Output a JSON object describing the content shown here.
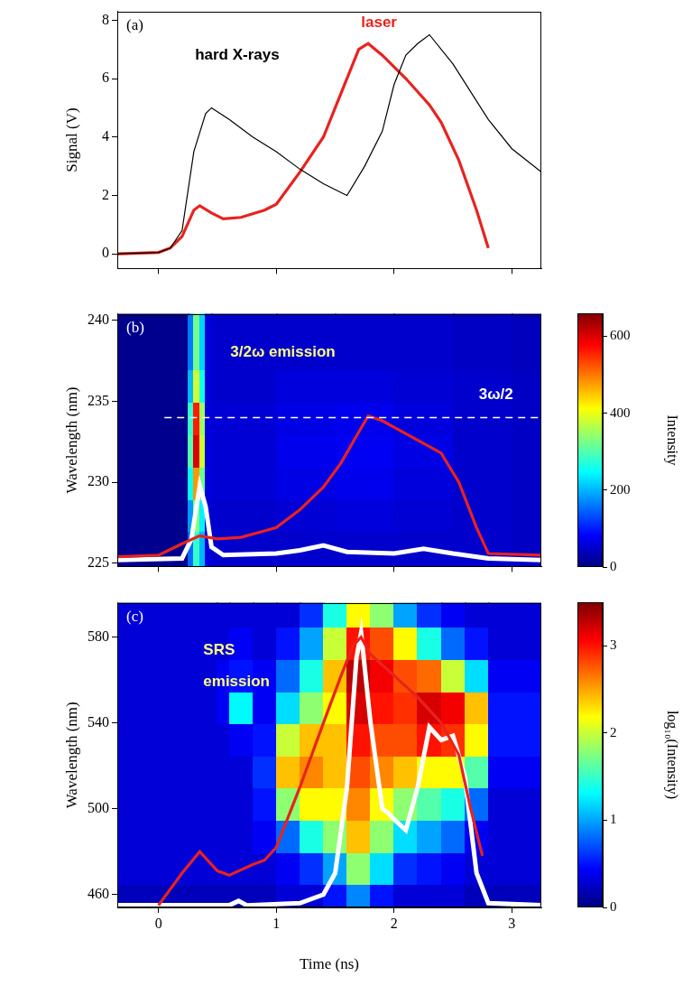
{
  "chart_data": [
    {
      "type": "line",
      "panel_label": "(a)",
      "y_label": "Signal (V)",
      "xlim": [
        -0.35,
        3.25
      ],
      "xticks": [
        0,
        1,
        2,
        3
      ],
      "ylim": [
        -0.5,
        8.3
      ],
      "yticks": [
        0,
        2,
        4,
        6,
        8
      ],
      "grid": false,
      "tick_labels": "y",
      "series": [
        {
          "color": "#000000",
          "line_style": "solid",
          "marker": "none",
          "x": [
            -0.35,
            0,
            0.1,
            0.2,
            0.3,
            0.4,
            0.45,
            0.6,
            0.8,
            1.0,
            1.2,
            1.4,
            1.6,
            1.75,
            1.9,
            2.0,
            2.1,
            2.2,
            2.3,
            2.5,
            2.8,
            3.0,
            3.25
          ],
          "values": [
            0,
            0.05,
            0.2,
            0.8,
            3.5,
            4.8,
            5.0,
            4.6,
            4.0,
            3.5,
            2.9,
            2.4,
            2.0,
            3.0,
            4.2,
            5.8,
            6.8,
            7.2,
            7.5,
            6.5,
            4.6,
            3.6,
            2.8
          ]
        },
        {
          "color": "#e8231e",
          "line_style": "thick",
          "marker": "none",
          "x": [
            -0.35,
            0,
            0.1,
            0.2,
            0.3,
            0.35,
            0.45,
            0.55,
            0.7,
            0.9,
            1.0,
            1.2,
            1.4,
            1.55,
            1.7,
            1.78,
            1.9,
            2.1,
            2.3,
            2.4,
            2.55,
            2.7,
            2.8
          ],
          "values": [
            0,
            0.05,
            0.2,
            0.6,
            1.5,
            1.65,
            1.4,
            1.2,
            1.25,
            1.5,
            1.7,
            2.8,
            4.0,
            5.5,
            7.0,
            7.2,
            6.8,
            6.0,
            5.1,
            4.5,
            3.2,
            1.5,
            0.2
          ]
        }
      ],
      "annotations": [
        {
          "text": "hard X-rays",
          "x": 0.31,
          "y": 6.8,
          "color": "#000000"
        },
        {
          "text": "laser",
          "x": 1.72,
          "y": 7.9,
          "color": "#e8231e"
        }
      ]
    },
    {
      "type": "heatmap",
      "panel_label": "(b)",
      "y_label": "Wavelength (nm)",
      "xlim": [
        -0.35,
        3.25
      ],
      "xticks": [
        0,
        1,
        2,
        3
      ],
      "ylim": [
        224.8,
        240.4
      ],
      "yticks": [
        225,
        230,
        235,
        240
      ],
      "grid": false,
      "tick_labels": "y",
      "heatmap": {
        "x_edges": [
          -0.35,
          0.25,
          0.3,
          0.35,
          0.4,
          0.45,
          1.0,
          1.5,
          2.0,
          2.5,
          3.0,
          3.25
        ],
        "y_edges": [
          224.8,
          227,
          229,
          231,
          233,
          235,
          237,
          240.4
        ],
        "z": [
          [
            10,
            150,
            280,
            200,
            60,
            50,
            50,
            50,
            50,
            50,
            45
          ],
          [
            10,
            180,
            330,
            240,
            60,
            50,
            55,
            60,
            55,
            50,
            45
          ],
          [
            10,
            250,
            480,
            320,
            60,
            55,
            65,
            70,
            60,
            50,
            45
          ],
          [
            10,
            300,
            600,
            380,
            60,
            55,
            70,
            75,
            65,
            50,
            45
          ],
          [
            10,
            280,
            560,
            350,
            60,
            55,
            65,
            70,
            60,
            50,
            45
          ],
          [
            10,
            200,
            380,
            260,
            60,
            50,
            60,
            60,
            55,
            50,
            45
          ],
          [
            10,
            160,
            320,
            220,
            60,
            50,
            50,
            50,
            50,
            45,
            40
          ]
        ]
      },
      "colorbar": {
        "label": "Intensity",
        "range": [
          0,
          660
        ],
        "ticks": [
          0,
          200,
          400,
          600
        ]
      },
      "series": [
        {
          "color": "#ffffff",
          "line_style": "dashed",
          "marker": "none",
          "x": [
            0.05,
            3.25
          ],
          "values": [
            234,
            234
          ]
        },
        {
          "color": "#e8231e",
          "line_style": "thick",
          "marker": "none",
          "x": [
            -0.35,
            0,
            0.2,
            0.35,
            0.5,
            0.7,
            0.9,
            1.0,
            1.2,
            1.4,
            1.55,
            1.7,
            1.78,
            1.9,
            2.1,
            2.3,
            2.4,
            2.55,
            2.7,
            2.8,
            3.25
          ],
          "values": [
            225.4,
            225.5,
            226.2,
            226.7,
            226.5,
            226.6,
            227.0,
            227.2,
            228.3,
            229.7,
            231.2,
            233.1,
            234.1,
            233.8,
            233.0,
            232.2,
            231.8,
            230.0,
            227.2,
            225.6,
            225.5
          ]
        },
        {
          "color": "#000000",
          "line_style": "outlined",
          "marker": "none",
          "x": [
            -0.35,
            0.2,
            0.28,
            0.35,
            0.4,
            0.45,
            0.55,
            1.0,
            1.2,
            1.4,
            1.6,
            2.0,
            2.25,
            2.5,
            2.8,
            3.25
          ],
          "values": [
            225.2,
            225.3,
            226.5,
            229.8,
            228.5,
            226.0,
            225.5,
            225.6,
            225.8,
            226.1,
            225.7,
            225.6,
            225.9,
            225.6,
            225.3,
            225.2
          ]
        }
      ],
      "annotations": [
        {
          "text": "3/2ω emission",
          "x": 0.61,
          "y": 238,
          "color": "#ffff80"
        },
        {
          "text": "3ω/2",
          "x": 2.72,
          "y": 235.4,
          "color": "#ffffff"
        }
      ]
    },
    {
      "type": "heatmap",
      "panel_label": "(c)",
      "x_label": "Time (ns)",
      "y_label": "Wavelength (nm)",
      "xlim": [
        -0.35,
        3.25
      ],
      "xticks": [
        0,
        1,
        2,
        3
      ],
      "ylim": [
        454,
        596
      ],
      "yticks": [
        460,
        500,
        540,
        580
      ],
      "grid": false,
      "heatmap": {
        "x_edges": [
          -0.35,
          0.5,
          0.6,
          0.8,
          1.0,
          1.2,
          1.4,
          1.6,
          1.8,
          2.0,
          2.2,
          2.4,
          2.6,
          2.8,
          3.25
        ],
        "y_edges": [
          454,
          465,
          480,
          495,
          510,
          525,
          540,
          555,
          570,
          585,
          596
        ],
        "z": [
          [
            0.2,
            0.2,
            0.2,
            0.2,
            0.3,
            0.3,
            0.5,
            0.9,
            0.5,
            0.3,
            0.3,
            0.3,
            0.2,
            0.2
          ],
          [
            0.3,
            0.3,
            0.3,
            0.3,
            0.4,
            0.6,
            1.0,
            1.8,
            1.2,
            0.6,
            0.5,
            0.4,
            0.3,
            0.3
          ],
          [
            0.3,
            0.3,
            0.3,
            0.4,
            0.8,
            1.4,
            1.8,
            2.4,
            1.8,
            1.2,
            1.0,
            0.8,
            0.4,
            0.3
          ],
          [
            0.3,
            0.3,
            0.3,
            0.5,
            1.8,
            2.2,
            2.2,
            2.6,
            2.2,
            1.8,
            1.6,
            1.4,
            0.8,
            0.3
          ],
          [
            0.3,
            0.3,
            0.3,
            0.6,
            2.4,
            2.6,
            2.4,
            2.8,
            2.6,
            2.4,
            2.2,
            2.2,
            1.6,
            0.4
          ],
          [
            0.3,
            0.3,
            0.4,
            0.5,
            2.0,
            2.4,
            2.4,
            3.0,
            2.8,
            2.8,
            3.0,
            2.9,
            2.2,
            0.5
          ],
          [
            0.3,
            0.4,
            1.3,
            0.4,
            1.2,
            1.8,
            2.2,
            3.2,
            3.0,
            2.9,
            3.2,
            3.1,
            2.4,
            0.5
          ],
          [
            0.3,
            0.4,
            0.5,
            0.4,
            0.8,
            1.4,
            2.4,
            3.3,
            3.1,
            2.8,
            2.7,
            2.0,
            1.2,
            0.4
          ],
          [
            0.3,
            0.3,
            0.4,
            0.3,
            0.5,
            1.0,
            2.0,
            3.0,
            2.8,
            2.2,
            1.4,
            0.8,
            0.5,
            0.3
          ],
          [
            0.3,
            0.3,
            0.3,
            0.3,
            0.3,
            0.6,
            1.4,
            2.2,
            1.8,
            1.0,
            0.6,
            0.4,
            0.3,
            0.3
          ]
        ]
      },
      "colorbar": {
        "label": "log₁₀(Intensity)",
        "range": [
          0,
          3.5
        ],
        "ticks": [
          0,
          1,
          2,
          3
        ]
      },
      "series": [
        {
          "color": "#e8231e",
          "line_style": "thick",
          "marker": "none",
          "x": [
            0,
            0.2,
            0.35,
            0.5,
            0.6,
            0.8,
            0.9,
            1.0,
            1.2,
            1.4,
            1.55,
            1.65,
            1.72,
            1.8,
            2.0,
            2.2,
            2.4,
            2.55,
            2.65,
            2.75
          ],
          "values": [
            455,
            470,
            480,
            471,
            469,
            474,
            476,
            482,
            510,
            540,
            562,
            576,
            580,
            572,
            562,
            552,
            540,
            525,
            500,
            478
          ]
        },
        {
          "color": "#000000",
          "line_style": "outlined",
          "marker": "none",
          "x": [
            -0.35,
            0.6,
            0.68,
            0.75,
            1.2,
            1.4,
            1.5,
            1.6,
            1.68,
            1.72,
            1.8,
            1.9,
            1.95,
            2.0,
            2.1,
            2.2,
            2.3,
            2.4,
            2.5,
            2.6,
            2.7,
            2.8,
            3.25
          ],
          "values": [
            455,
            455,
            457,
            455,
            456,
            460,
            470,
            510,
            570,
            582,
            540,
            500,
            498,
            495,
            490,
            510,
            538,
            532,
            534,
            515,
            470,
            456,
            455
          ]
        }
      ],
      "annotations": [
        {
          "text": "SRS",
          "x": 0.38,
          "y": 574,
          "color": "#ffff80"
        },
        {
          "text": "emission",
          "x": 0.38,
          "y": 559,
          "color": "#ffff80"
        }
      ]
    }
  ]
}
